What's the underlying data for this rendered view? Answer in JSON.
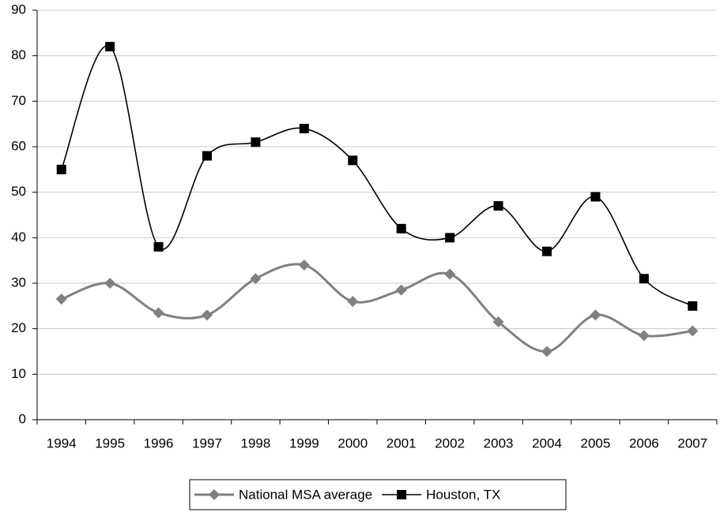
{
  "chart_data": {
    "type": "line",
    "categories": [
      "1994",
      "1995",
      "1996",
      "1997",
      "1998",
      "1999",
      "2000",
      "2001",
      "2002",
      "2003",
      "2004",
      "2005",
      "2006",
      "2007"
    ],
    "series": [
      {
        "name": "National MSA average",
        "color": "#808080",
        "marker": "diamond",
        "values": [
          26.5,
          30,
          23.5,
          23,
          31,
          34,
          26,
          28.5,
          32,
          21.5,
          15,
          23,
          18.5,
          19.5
        ]
      },
      {
        "name": "Houston, TX",
        "color": "#000000",
        "marker": "square",
        "values": [
          55,
          82,
          38,
          58,
          61,
          64,
          57,
          42,
          40,
          47,
          37,
          49,
          31,
          25
        ]
      }
    ],
    "ylim": [
      0,
      90
    ],
    "yticks": [
      0,
      10,
      20,
      30,
      40,
      50,
      60,
      70,
      80,
      90
    ],
    "grid": true,
    "smooth": true,
    "legend": "bottom"
  }
}
